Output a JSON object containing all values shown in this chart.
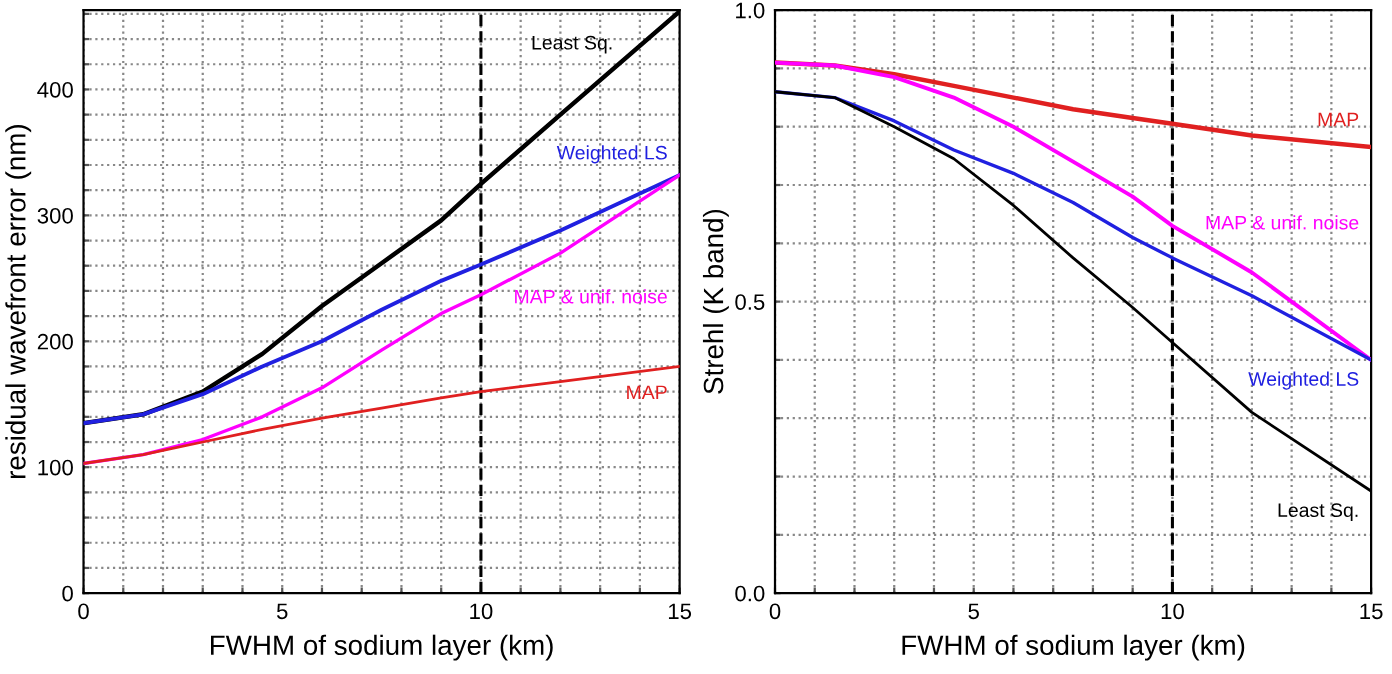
{
  "chart_data": [
    {
      "type": "line",
      "xlabel": "FWHM of sodium layer (km)",
      "ylabel": "residual wavefront error (nm)",
      "xlim": [
        0,
        15
      ],
      "ylim": [
        0,
        463
      ],
      "xticks": [
        0,
        {
          "value": 1,
          "label": null
        },
        {
          "value": 2,
          "label": null
        },
        {
          "value": 3,
          "label": null
        },
        {
          "value": 4,
          "label": null
        },
        5,
        {
          "value": 6,
          "label": null
        },
        {
          "value": 7,
          "label": null
        },
        {
          "value": 8,
          "label": null
        },
        {
          "value": 9,
          "label": null
        },
        10,
        {
          "value": 11,
          "label": null
        },
        {
          "value": 12,
          "label": null
        },
        {
          "value": 13,
          "label": null
        },
        {
          "value": 14,
          "label": null
        },
        15
      ],
      "yticks": [
        0,
        {
          "value": 20,
          "label": null
        },
        {
          "value": 40,
          "label": null
        },
        {
          "value": 60,
          "label": null
        },
        {
          "value": 80,
          "label": null
        },
        100,
        {
          "value": 120,
          "label": null
        },
        {
          "value": 140,
          "label": null
        },
        {
          "value": 160,
          "label": null
        },
        {
          "value": 180,
          "label": null
        },
        200,
        {
          "value": 220,
          "label": null
        },
        {
          "value": 240,
          "label": null
        },
        {
          "value": 260,
          "label": null
        },
        {
          "value": 280,
          "label": null
        },
        300,
        {
          "value": 320,
          "label": null
        },
        {
          "value": 340,
          "label": null
        },
        {
          "value": 360,
          "label": null
        },
        {
          "value": 380,
          "label": null
        },
        400,
        {
          "value": 420,
          "label": null
        },
        {
          "value": 440,
          "label": null
        },
        {
          "value": 460,
          "label": null
        }
      ],
      "grid": true,
      "line_style": "solid",
      "x": [
        0,
        1.5,
        3,
        4.5,
        6,
        7.5,
        9,
        10,
        12,
        15
      ],
      "ref_lines": [
        {
          "axis": "x",
          "value": 10,
          "label": null,
          "color": "#000000",
          "line_style": "dashed"
        }
      ],
      "series": [
        {
          "name": "Least Sq.",
          "color": "#000000",
          "values": [
            135,
            142,
            160,
            190,
            228,
            262,
            296,
            325,
            380,
            462
          ]
        },
        {
          "name": "Weighted LS",
          "color": "#2020e0",
          "values": [
            135,
            142,
            158,
            180,
            200,
            225,
            248,
            261,
            288,
            332
          ]
        },
        {
          "name": "MAP & unif. noise",
          "color": "#ff00ff",
          "values": [
            103,
            110,
            122,
            140,
            163,
            193,
            222,
            237,
            270,
            332
          ]
        },
        {
          "name": "MAP",
          "color": "#e02020",
          "values": [
            103,
            110,
            120,
            130,
            139,
            147,
            155,
            160,
            168,
            180
          ]
        }
      ]
    },
    {
      "type": "line",
      "xlabel": "FWHM of sodium layer (km)",
      "ylabel": "Strehl (K band)",
      "xlim": [
        0,
        15
      ],
      "ylim": [
        0,
        1
      ],
      "xticks": [
        0,
        {
          "value": 1,
          "label": null
        },
        {
          "value": 2,
          "label": null
        },
        {
          "value": 3,
          "label": null
        },
        {
          "value": 4,
          "label": null
        },
        5,
        {
          "value": 6,
          "label": null
        },
        {
          "value": 7,
          "label": null
        },
        {
          "value": 8,
          "label": null
        },
        {
          "value": 9,
          "label": null
        },
        10,
        {
          "value": 11,
          "label": null
        },
        {
          "value": 12,
          "label": null
        },
        {
          "value": 13,
          "label": null
        },
        {
          "value": 14,
          "label": null
        },
        15
      ],
      "yticks": [
        {
          "value": 0,
          "label": "0.0"
        },
        {
          "value": 0.1,
          "label": null
        },
        {
          "value": 0.2,
          "label": null
        },
        {
          "value": 0.3,
          "label": null
        },
        {
          "value": 0.4,
          "label": null
        },
        0.5,
        {
          "value": 0.6,
          "label": null
        },
        {
          "value": 0.7,
          "label": null
        },
        {
          "value": 0.8,
          "label": null
        },
        {
          "value": 0.9,
          "label": null
        },
        {
          "value": 1,
          "label": "1.0"
        }
      ],
      "grid": true,
      "line_style": "solid",
      "x": [
        0,
        1.5,
        3,
        4.5,
        6,
        7.5,
        9,
        10,
        12,
        15
      ],
      "ref_lines": [
        {
          "axis": "x",
          "value": 10,
          "label": null,
          "color": "#000000",
          "line_style": "dashed"
        }
      ],
      "series": [
        {
          "name": "MAP",
          "color": "#e02020",
          "values": [
            0.91,
            0.905,
            0.89,
            0.87,
            0.85,
            0.83,
            0.815,
            0.805,
            0.785,
            0.765
          ]
        },
        {
          "name": "MAP & unif. noise",
          "color": "#ff00ff",
          "values": [
            0.91,
            0.905,
            0.885,
            0.85,
            0.8,
            0.74,
            0.68,
            0.63,
            0.55,
            0.4
          ]
        },
        {
          "name": "Weighted LS",
          "color": "#2020e0",
          "values": [
            0.86,
            0.85,
            0.81,
            0.76,
            0.72,
            0.67,
            0.61,
            0.575,
            0.51,
            0.4
          ]
        },
        {
          "name": "Least Sq.",
          "color": "#000000",
          "values": [
            0.86,
            0.85,
            0.8,
            0.745,
            0.665,
            0.575,
            0.49,
            0.43,
            0.31,
            0.175
          ]
        }
      ]
    }
  ]
}
